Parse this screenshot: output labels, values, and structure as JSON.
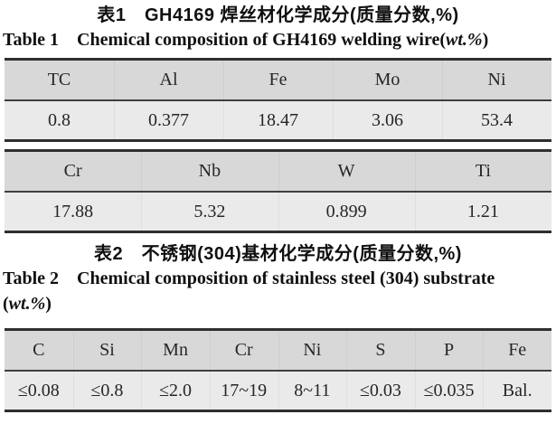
{
  "colors": {
    "page_bg": "#ffffff",
    "header_row_bg": "#d8d8d8",
    "value_row_bg": "#eaeaea",
    "border_dark": "#2f2f2f",
    "separator": "#3f3f3f",
    "title_text": "#101010",
    "cell_text": "#262626"
  },
  "table1": {
    "title_zh": "表1 GH4169 焊丝材化学成分(质量分数,%)",
    "title_en": {
      "prefix": "Table 1 Chemical composition of GH4169 welding wire(",
      "italic": "wt.%",
      "suffix": ")"
    },
    "part1": {
      "headers": [
        "TC",
        "Al",
        "Fe",
        "Mo",
        "Ni"
      ],
      "values": [
        "0.8",
        "0.377",
        "18.47",
        "3.06",
        "53.4"
      ]
    },
    "part2": {
      "headers": [
        "Cr",
        "Nb",
        "W",
        "Ti"
      ],
      "values": [
        "17.88",
        "5.32",
        "0.899",
        "1.21"
      ]
    }
  },
  "table2": {
    "title_zh": "表2 不锈钢(304)基材化学成分(质量分数,%)",
    "title_en_line1": "Table 2 Chemical composition of stainless steel (304) substrate",
    "title_en_line2": {
      "prefix": "(",
      "italic": "wt.%",
      "suffix": ")"
    },
    "headers": [
      "C",
      "Si",
      "Mn",
      "Cr",
      "Ni",
      "S",
      "P",
      "Fe"
    ],
    "values": [
      "≤0.08",
      "≤0.8",
      "≤2.0",
      "17~19",
      "8~11",
      "≤0.03",
      "≤0.035",
      "Bal."
    ]
  },
  "chart_data": [
    {
      "type": "table",
      "title": "表1 GH4169 焊丝材化学成分(质量分数,%) / Table 1 Chemical composition of GH4169 welding wire(wt.%)",
      "categories": [
        "TC",
        "Al",
        "Fe",
        "Mo",
        "Ni",
        "Cr",
        "Nb",
        "W",
        "Ti"
      ],
      "values": [
        0.8,
        0.377,
        18.47,
        3.06,
        53.4,
        17.88,
        5.32,
        0.899,
        1.21
      ]
    },
    {
      "type": "table",
      "title": "表2 不锈钢(304)基材化学成分(质量分数,%) / Table 2 Chemical composition of stainless steel (304) substrate (wt.%)",
      "categories": [
        "C",
        "Si",
        "Mn",
        "Cr",
        "Ni",
        "S",
        "P",
        "Fe"
      ],
      "values": [
        "≤0.08",
        "≤0.8",
        "≤2.0",
        "17~19",
        "8~11",
        "≤0.03",
        "≤0.035",
        "Bal."
      ]
    }
  ]
}
